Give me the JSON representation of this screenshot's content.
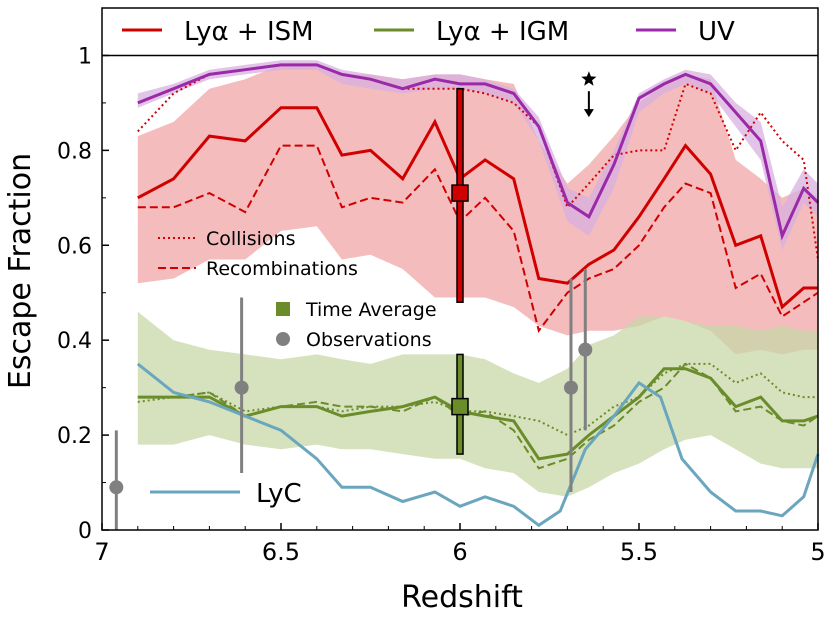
{
  "chart_data": {
    "type": "line",
    "xlabel": "Redshift",
    "ylabel": "Escape  Fraction",
    "xlim": [
      7,
      5
    ],
    "ylim": [
      0,
      1.1
    ],
    "x_ticks": [
      7,
      6.5,
      6,
      5.5,
      5
    ],
    "x_tick_labels": [
      "7",
      "6.5",
      "6",
      "5.5",
      "5"
    ],
    "y_ticks": [
      0,
      0.2,
      0.4,
      0.6,
      0.8,
      1
    ],
    "y_tick_labels": [
      "0",
      "0.2",
      "0.4",
      "0.6",
      "0.8",
      "1"
    ],
    "reference_line": {
      "y": 1
    },
    "grid": false,
    "legend_placement": "top",
    "colors": {
      "red": "#d00000",
      "red_band": "#f0a0a0",
      "green": "#6a8c2a",
      "green_band": "#c8d8a8",
      "purple": "#9a2aa8",
      "purple_band": "#d8b0e0",
      "lyc": "#6aa6be",
      "obs": "#808080",
      "star": "#000000"
    },
    "legend_top": [
      {
        "label": "Lyα + ISM",
        "color": "#d00000"
      },
      {
        "label": "Lyα + IGM",
        "color": "#6a8c2a"
      },
      {
        "label": "UV",
        "color": "#9a2aa8"
      }
    ],
    "legend_inner": [
      {
        "label": "Collisions",
        "style": "dotted"
      },
      {
        "label": "Recombinations",
        "style": "dashed"
      },
      {
        "label": "Time  Average",
        "marker": "square"
      },
      {
        "label": "Observations",
        "marker": "circle"
      }
    ],
    "legend_lyc": {
      "label": "LyC"
    },
    "star_marker": {
      "x": 5.64,
      "y": 0.95,
      "arrow_to": 0.87
    },
    "x": [
      6.9,
      6.8,
      6.7,
      6.6,
      6.5,
      6.4,
      6.33,
      6.25,
      6.16,
      6.07,
      6.0,
      5.93,
      5.85,
      5.78,
      5.7,
      5.64,
      5.57,
      5.5,
      5.43,
      5.37,
      5.3,
      5.23,
      5.16,
      5.1,
      5.04,
      5.0
    ],
    "series": [
      {
        "name": "Lyα + ISM",
        "color": "#d00000",
        "band_lo": [
          0.52,
          0.53,
          0.57,
          0.57,
          0.63,
          0.64,
          0.57,
          0.58,
          0.55,
          0.49,
          0.49,
          0.49,
          0.47,
          0.43,
          0.41,
          0.42,
          0.42,
          0.43,
          0.45,
          0.44,
          0.42,
          0.37,
          0.38,
          0.37,
          0.38,
          0.38
        ],
        "band_hi": [
          0.83,
          0.86,
          0.93,
          0.95,
          0.98,
          0.98,
          0.96,
          0.96,
          0.95,
          0.96,
          0.96,
          0.95,
          0.94,
          0.82,
          0.73,
          0.77,
          0.83,
          0.9,
          0.94,
          0.96,
          0.95,
          0.78,
          0.74,
          0.7,
          0.72,
          0.7
        ],
        "solid": [
          0.7,
          0.74,
          0.83,
          0.82,
          0.89,
          0.89,
          0.79,
          0.8,
          0.74,
          0.86,
          0.74,
          0.78,
          0.74,
          0.53,
          0.52,
          0.56,
          0.59,
          0.66,
          0.74,
          0.81,
          0.75,
          0.6,
          0.62,
          0.47,
          0.51,
          0.51
        ],
        "dotted": [
          0.84,
          0.92,
          0.96,
          0.97,
          0.98,
          0.98,
          0.96,
          0.95,
          0.93,
          0.93,
          0.93,
          0.92,
          0.9,
          0.85,
          0.68,
          0.73,
          0.79,
          0.8,
          0.8,
          0.94,
          0.92,
          0.8,
          0.88,
          0.82,
          0.78,
          0.57
        ],
        "dashed": [
          0.68,
          0.68,
          0.71,
          0.67,
          0.81,
          0.81,
          0.68,
          0.7,
          0.69,
          0.76,
          0.65,
          0.7,
          0.63,
          0.42,
          0.5,
          0.53,
          0.55,
          0.6,
          0.68,
          0.73,
          0.71,
          0.51,
          0.54,
          0.45,
          0.48,
          0.5
        ]
      },
      {
        "name": "Lyα + IGM",
        "color": "#6a8c2a",
        "band_lo": [
          0.18,
          0.18,
          0.2,
          0.18,
          0.17,
          0.18,
          0.17,
          0.17,
          0.16,
          0.15,
          0.15,
          0.13,
          0.12,
          0.08,
          0.07,
          0.09,
          0.12,
          0.14,
          0.17,
          0.19,
          0.2,
          0.17,
          0.14,
          0.13,
          0.13,
          0.13
        ],
        "band_hi": [
          0.46,
          0.4,
          0.38,
          0.37,
          0.36,
          0.37,
          0.36,
          0.35,
          0.37,
          0.37,
          0.37,
          0.36,
          0.33,
          0.31,
          0.34,
          0.39,
          0.41,
          0.45,
          0.45,
          0.44,
          0.43,
          0.43,
          0.42,
          0.43,
          0.42,
          0.42
        ],
        "solid": [
          0.28,
          0.28,
          0.28,
          0.24,
          0.26,
          0.26,
          0.24,
          0.25,
          0.26,
          0.28,
          0.25,
          0.24,
          0.23,
          0.15,
          0.16,
          0.2,
          0.24,
          0.28,
          0.34,
          0.34,
          0.32,
          0.26,
          0.28,
          0.23,
          0.23,
          0.24
        ],
        "dotted": [
          0.27,
          0.28,
          0.29,
          0.25,
          0.26,
          0.26,
          0.25,
          0.26,
          0.26,
          0.27,
          0.25,
          0.25,
          0.24,
          0.23,
          0.2,
          0.22,
          0.26,
          0.28,
          0.33,
          0.35,
          0.35,
          0.31,
          0.33,
          0.29,
          0.28,
          0.28
        ],
        "dashed": [
          0.28,
          0.28,
          0.29,
          0.24,
          0.26,
          0.27,
          0.26,
          0.26,
          0.25,
          0.28,
          0.24,
          0.25,
          0.21,
          0.13,
          0.15,
          0.19,
          0.22,
          0.27,
          0.3,
          0.35,
          0.32,
          0.25,
          0.26,
          0.23,
          0.22,
          0.24
        ]
      },
      {
        "name": "UV",
        "color": "#9a2aa8",
        "band_lo": [
          0.89,
          0.92,
          0.95,
          0.96,
          0.97,
          0.97,
          0.94,
          0.93,
          0.92,
          0.93,
          0.93,
          0.92,
          0.9,
          0.82,
          0.65,
          0.62,
          0.72,
          0.88,
          0.92,
          0.94,
          0.92,
          0.85,
          0.78,
          0.59,
          0.69,
          0.66
        ],
        "band_hi": [
          0.92,
          0.94,
          0.97,
          0.98,
          0.99,
          0.99,
          0.97,
          0.96,
          0.95,
          0.96,
          0.96,
          0.95,
          0.93,
          0.87,
          0.72,
          0.7,
          0.8,
          0.92,
          0.95,
          0.97,
          0.96,
          0.9,
          0.86,
          0.68,
          0.76,
          0.73
        ],
        "solid": [
          0.9,
          0.93,
          0.96,
          0.97,
          0.98,
          0.98,
          0.96,
          0.95,
          0.93,
          0.95,
          0.94,
          0.94,
          0.92,
          0.85,
          0.69,
          0.66,
          0.77,
          0.91,
          0.94,
          0.96,
          0.94,
          0.88,
          0.82,
          0.62,
          0.72,
          0.69
        ]
      },
      {
        "name": "LyC",
        "color": "#6aa6be",
        "values": [
          0.35,
          0.29,
          0.27,
          0.24,
          0.21,
          0.15,
          0.09,
          0.09,
          0.06,
          0.08,
          0.05,
          0.07,
          0.05,
          0.01,
          0.04,
          0.17,
          0.24,
          0.31,
          0.28,
          0.15,
          0.08,
          0.04,
          0.04,
          0.03,
          0.07,
          0.16
        ],
        "x_override": [
          6.9,
          6.8,
          6.7,
          6.6,
          6.5,
          6.4,
          6.33,
          6.25,
          6.16,
          6.07,
          6.0,
          5.93,
          5.85,
          5.78,
          5.72,
          5.65,
          5.57,
          5.5,
          5.44,
          5.38,
          5.3,
          5.23,
          5.16,
          5.1,
          5.04,
          5.0
        ]
      }
    ],
    "time_average": [
      {
        "name": "Lyα + ISM",
        "x": 6.0,
        "y": 0.71,
        "lo": 0.48,
        "hi": 0.93,
        "color": "#d00000"
      },
      {
        "name": "Lyα + IGM",
        "x": 6.0,
        "y": 0.26,
        "lo": 0.16,
        "hi": 0.37,
        "color": "#6a8c2a"
      }
    ],
    "observations": [
      {
        "x": 6.96,
        "y": 0.09,
        "lo": 0.0,
        "hi": 0.21
      },
      {
        "x": 6.61,
        "y": 0.3,
        "lo": 0.12,
        "hi": 0.49
      },
      {
        "x": 5.69,
        "y": 0.3,
        "lo": 0.08,
        "hi": 0.53
      },
      {
        "x": 5.65,
        "y": 0.38,
        "lo": 0.21,
        "hi": 0.55
      }
    ]
  }
}
